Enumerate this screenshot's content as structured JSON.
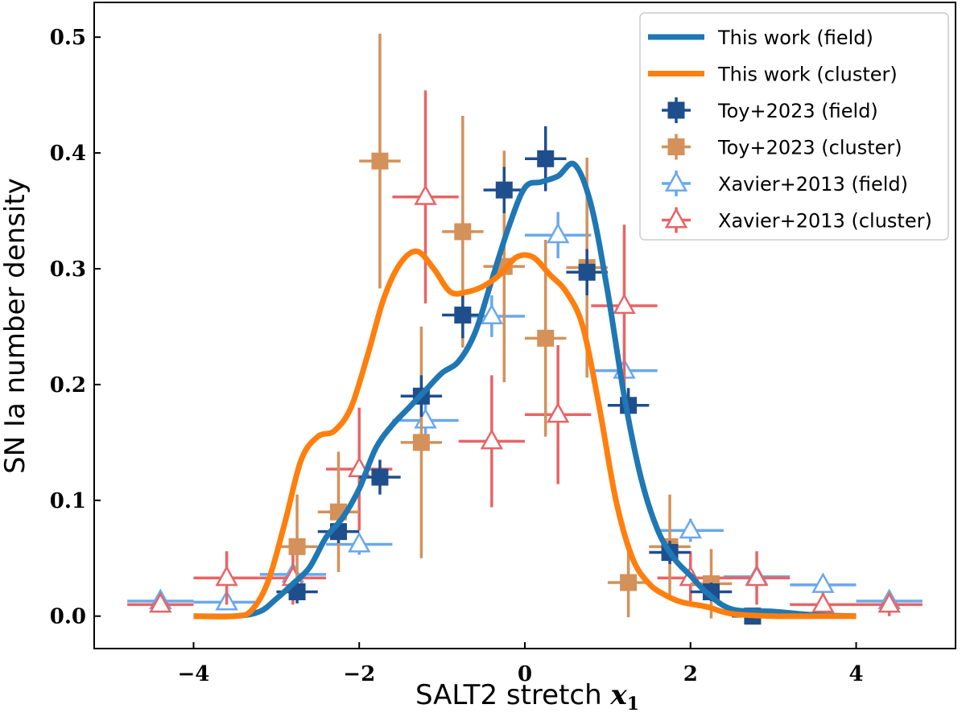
{
  "chart_data": {
    "type": "line",
    "xlabel": "SALT2 stretch",
    "xlabel_symbol": "x",
    "xlabel_subscript": "1",
    "ylabel": "SN Ia number density",
    "xlim": [
      -5.2,
      5.2
    ],
    "ylim": [
      -0.028,
      0.53
    ],
    "xticks": [
      -4,
      -2,
      0,
      2,
      4
    ],
    "xtick_labels": [
      "−4",
      "−2",
      "0",
      "2",
      "4"
    ],
    "yticks": [
      0.0,
      0.1,
      0.2,
      0.3,
      0.4,
      0.5
    ],
    "ytick_labels": [
      "0.0",
      "0.1",
      "0.2",
      "0.3",
      "0.4",
      "0.5"
    ],
    "legend_position": "upper right",
    "colors": {
      "field_curve": "#1f77b4",
      "cluster_curve": "#ff7f0e",
      "toy_field": "#1f4e8c",
      "toy_cluster": "#d4915a",
      "xavier_field": "#6aa8ee",
      "xavier_cluster": "#e86465"
    },
    "lines": [
      {
        "name": "This work (field)",
        "color_key": "field_curve",
        "x": [
          -4.0,
          -3.5,
          -3.2,
          -3.0,
          -2.8,
          -2.6,
          -2.4,
          -2.2,
          -2.0,
          -1.8,
          -1.6,
          -1.4,
          -1.2,
          -1.0,
          -0.8,
          -0.6,
          -0.4,
          -0.2,
          0.0,
          0.2,
          0.4,
          0.6,
          0.8,
          1.0,
          1.2,
          1.4,
          1.6,
          1.8,
          2.0,
          2.2,
          2.5,
          3.0,
          3.5,
          4.0
        ],
        "y": [
          0.0,
          0.0,
          0.004,
          0.015,
          0.028,
          0.042,
          0.068,
          0.085,
          0.11,
          0.145,
          0.165,
          0.18,
          0.195,
          0.21,
          0.22,
          0.245,
          0.29,
          0.335,
          0.37,
          0.375,
          0.38,
          0.39,
          0.355,
          0.28,
          0.19,
          0.12,
          0.075,
          0.05,
          0.035,
          0.02,
          0.006,
          0.004,
          0.001,
          0.0
        ]
      },
      {
        "name": "This work (cluster)",
        "color_key": "cluster_curve",
        "x": [
          -4.0,
          -3.5,
          -3.3,
          -3.1,
          -2.9,
          -2.7,
          -2.5,
          -2.3,
          -2.1,
          -1.9,
          -1.7,
          -1.5,
          -1.3,
          -1.1,
          -0.9,
          -0.7,
          -0.5,
          -0.3,
          -0.1,
          0.1,
          0.3,
          0.5,
          0.7,
          0.9,
          1.1,
          1.3,
          1.5,
          1.7,
          1.9,
          2.2,
          2.5,
          3.0,
          3.5,
          4.0
        ],
        "y": [
          0.0,
          0.0,
          0.005,
          0.03,
          0.08,
          0.135,
          0.155,
          0.16,
          0.18,
          0.225,
          0.275,
          0.305,
          0.315,
          0.3,
          0.28,
          0.28,
          0.285,
          0.295,
          0.31,
          0.31,
          0.295,
          0.28,
          0.25,
          0.18,
          0.1,
          0.05,
          0.028,
          0.018,
          0.012,
          0.008,
          0.002,
          0.0,
          0.0,
          0.0
        ]
      }
    ],
    "series": [
      {
        "name": "Toy+2023 (field)",
        "marker": "square",
        "color_key": "toy_field",
        "x": [
          -2.75,
          -2.25,
          -1.75,
          -1.25,
          -0.75,
          -0.25,
          0.25,
          0.75,
          1.25,
          1.75,
          2.25,
          2.75
        ],
        "y": [
          0.021,
          0.073,
          0.12,
          0.19,
          0.26,
          0.368,
          0.395,
          0.297,
          0.182,
          0.055,
          0.021,
          0.0
        ],
        "xerr": [
          0.25,
          0.25,
          0.25,
          0.25,
          0.25,
          0.25,
          0.25,
          0.25,
          0.25,
          0.25,
          0.25,
          0.25
        ],
        "yerr": [
          0.01,
          0.01,
          0.015,
          0.018,
          0.02,
          0.02,
          0.028,
          0.02,
          0.015,
          0.01,
          0.008,
          0.0
        ]
      },
      {
        "name": "Toy+2023 (cluster)",
        "marker": "square",
        "color_key": "toy_cluster",
        "x": [
          -2.75,
          -2.25,
          -1.75,
          -1.25,
          -0.75,
          -0.25,
          0.25,
          0.75,
          1.25,
          1.75,
          2.25,
          2.75
        ],
        "y": [
          0.06,
          0.09,
          0.393,
          0.15,
          0.332,
          0.302,
          0.24,
          0.301,
          0.029,
          0.06,
          0.028,
          0.0
        ],
        "xerr": [
          0.25,
          0.25,
          0.25,
          0.25,
          0.25,
          0.25,
          0.25,
          0.25,
          0.25,
          0.25,
          0.25,
          0.25
        ],
        "yerr": [
          0.045,
          0.052,
          0.11,
          0.1,
          0.1,
          0.1,
          0.085,
          0.095,
          0.03,
          0.045,
          0.03,
          0.0
        ]
      },
      {
        "name": "Xavier+2013 (field)",
        "marker": "triangle",
        "color_key": "xavier_field",
        "x": [
          -4.4,
          -3.6,
          -2.8,
          -2.0,
          -1.2,
          -0.4,
          0.4,
          1.2,
          2.0,
          2.8,
          3.6,
          4.4
        ],
        "y": [
          0.013,
          0.012,
          0.036,
          0.062,
          0.169,
          0.259,
          0.329,
          0.212,
          0.074,
          0.034,
          0.027,
          0.013
        ],
        "xerr": [
          0.4,
          0.4,
          0.4,
          0.4,
          0.4,
          0.4,
          0.4,
          0.4,
          0.4,
          0.4,
          0.4,
          0.4
        ],
        "yerr": [
          0.005,
          0.005,
          0.007,
          0.009,
          0.015,
          0.018,
          0.02,
          0.015,
          0.01,
          0.007,
          0.007,
          0.005
        ]
      },
      {
        "name": "Xavier+2013 (cluster)",
        "marker": "triangle",
        "color_key": "xavier_cluster",
        "x": [
          -4.4,
          -3.6,
          -2.8,
          -2.0,
          -1.2,
          -0.4,
          0.4,
          1.2,
          2.0,
          2.8,
          3.6,
          4.4
        ],
        "y": [
          0.01,
          0.033,
          0.033,
          0.127,
          0.362,
          0.151,
          0.174,
          0.268,
          0.033,
          0.033,
          0.01,
          0.01
        ],
        "xerr": [
          0.4,
          0.4,
          0.4,
          0.4,
          0.4,
          0.4,
          0.4,
          0.4,
          0.4,
          0.4,
          0.4,
          0.4
        ],
        "yerr": [
          0.005,
          0.023,
          0.023,
          0.053,
          0.092,
          0.057,
          0.06,
          0.07,
          0.023,
          0.023,
          0.01,
          0.01
        ]
      }
    ]
  }
}
